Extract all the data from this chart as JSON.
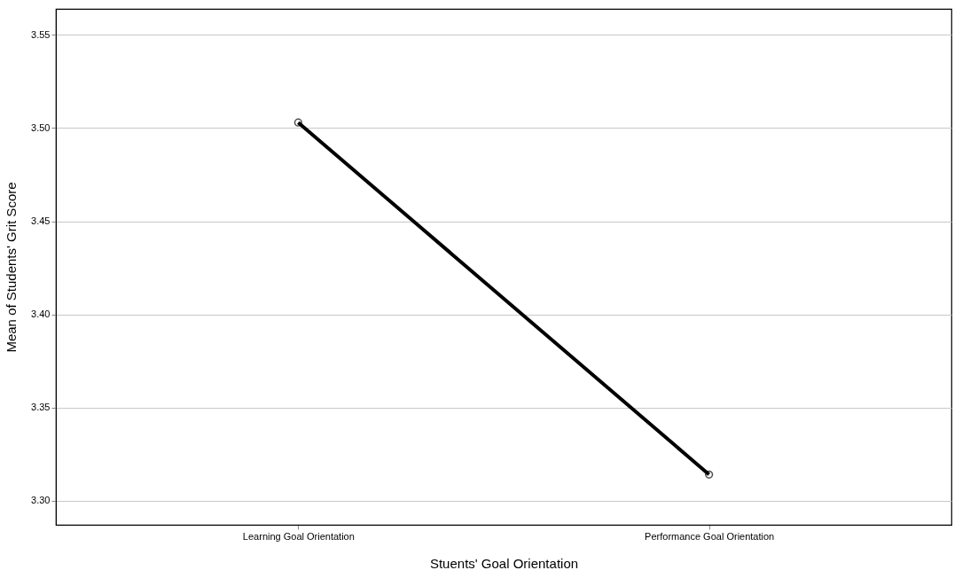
{
  "chart_data": {
    "type": "line",
    "xlabel": "Stuents' Goal Orientation",
    "ylabel": "Mean of Students' Grit Score",
    "categories": [
      "Learning Goal Orientation",
      "Performance Goal Orientation"
    ],
    "series": [
      {
        "color": "#000000",
        "values": [
          3.503,
          3.314
        ]
      }
    ],
    "ylim": [
      3.287,
      3.564
    ],
    "yticks": [
      {
        "value": 3.3,
        "label": "3.30"
      },
      {
        "value": 3.35,
        "label": "3.35"
      },
      {
        "value": 3.4,
        "label": "3.40"
      },
      {
        "value": 3.45,
        "label": "3.45"
      },
      {
        "value": 3.5,
        "label": "3.50"
      },
      {
        "value": 3.55,
        "label": "3.55"
      }
    ],
    "grid": "y",
    "marker": "circle",
    "line_style": "solid"
  }
}
